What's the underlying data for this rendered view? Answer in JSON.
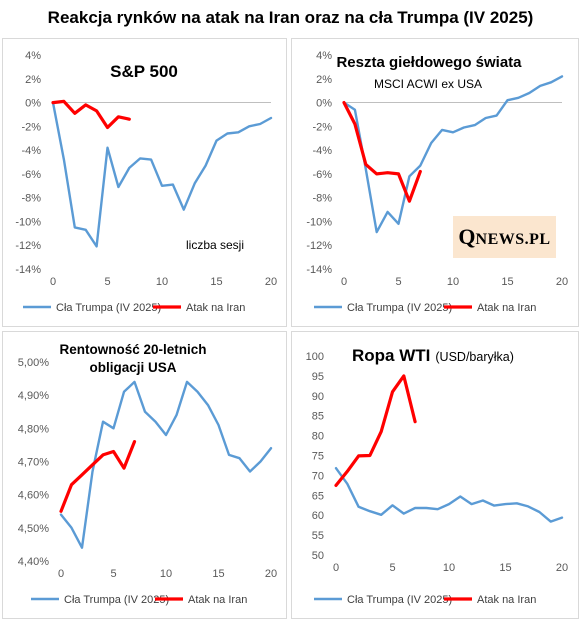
{
  "title": "Reakcja rynków na atak na Iran oraz na cła Trumpa (IV 2025)",
  "logo": {
    "big": "Q",
    "small": "NEWS.PL"
  },
  "colors": {
    "trump": "#5b9bd5",
    "iran": "#ff0000"
  },
  "chart_data": [
    {
      "type": "line",
      "title": "S&P 500",
      "subtitle": "",
      "annotation": "liczba sesji",
      "xlim": [
        0,
        20
      ],
      "xticks": [
        0,
        5,
        10,
        15,
        20
      ],
      "ylim": [
        -14,
        4
      ],
      "yticks": [
        4,
        2,
        0,
        -2,
        -4,
        -6,
        -8,
        -10,
        -12,
        -14
      ],
      "ytick_labels": [
        "4%",
        "2%",
        "0%",
        "-2%",
        "-4%",
        "-6%",
        "-8%",
        "-10%",
        "-12%",
        "-14%"
      ],
      "zero_line": true,
      "legend_position": "bottom",
      "series": [
        {
          "name": "Cła Trumpa (IV 2025)",
          "color": "#5b9bd5",
          "x": [
            0,
            1,
            2,
            3,
            4,
            5,
            6,
            7,
            8,
            9,
            10,
            11,
            12,
            13,
            14,
            15,
            16,
            17,
            18,
            19,
            20
          ],
          "y": [
            0,
            -4.8,
            -10.5,
            -10.7,
            -12.1,
            -3.8,
            -7.1,
            -5.5,
            -4.7,
            -4.8,
            -7.0,
            -6.9,
            -9.0,
            -6.8,
            -5.3,
            -3.2,
            -2.6,
            -2.5,
            -2.0,
            -1.8,
            -1.3
          ]
        },
        {
          "name": "Atak na Iran",
          "color": "#ff0000",
          "x": [
            0,
            1,
            2,
            3,
            4,
            5,
            6,
            7
          ],
          "y": [
            0,
            0.1,
            -0.9,
            -0.2,
            -0.7,
            -2.1,
            -1.2,
            -1.4
          ]
        }
      ]
    },
    {
      "type": "line",
      "title": "Reszta giełdowego świata",
      "subtitle": "MSCI ACWI ex USA",
      "annotation": "",
      "xlim": [
        0,
        20
      ],
      "xticks": [
        0,
        5,
        10,
        15,
        20
      ],
      "ylim": [
        -14,
        4
      ],
      "yticks": [
        4,
        2,
        0,
        -2,
        -4,
        -6,
        -8,
        -10,
        -12,
        -14
      ],
      "ytick_labels": [
        "4%",
        "2%",
        "0%",
        "-2%",
        "-4%",
        "-6%",
        "-8%",
        "-10%",
        "-12%",
        "-14%"
      ],
      "zero_line": true,
      "legend_position": "bottom",
      "series": [
        {
          "name": "Cła Trumpa (IV 2025)",
          "color": "#5b9bd5",
          "x": [
            0,
            1,
            2,
            3,
            4,
            5,
            6,
            7,
            8,
            9,
            10,
            11,
            12,
            13,
            14,
            15,
            16,
            17,
            18,
            19,
            20
          ],
          "y": [
            0,
            -0.6,
            -5.6,
            -10.9,
            -9.2,
            -10.2,
            -6.2,
            -5.3,
            -3.4,
            -2.3,
            -2.5,
            -2.1,
            -1.9,
            -1.3,
            -1.1,
            0.2,
            0.4,
            0.8,
            1.4,
            1.7,
            2.2
          ]
        },
        {
          "name": "Atak na Iran",
          "color": "#ff0000",
          "x": [
            0,
            1,
            2,
            3,
            4,
            5,
            6,
            7
          ],
          "y": [
            0,
            -1.8,
            -5.2,
            -6.0,
            -5.9,
            -6.0,
            -8.3,
            -5.8
          ]
        }
      ]
    },
    {
      "type": "line",
      "title": "Rentowność 20-letnich obligacji USA",
      "title_lines": [
        "Rentowność 20-letnich",
        "obligacji USA"
      ],
      "subtitle": "",
      "annotation": "",
      "xlim": [
        0,
        20
      ],
      "xticks": [
        0,
        5,
        10,
        15,
        20
      ],
      "ylim": [
        4.4,
        5.0
      ],
      "yticks": [
        5.0,
        4.9,
        4.8,
        4.7,
        4.6,
        4.5,
        4.4
      ],
      "ytick_labels": [
        "5,00%",
        "4,90%",
        "4,80%",
        "4,70%",
        "4,60%",
        "4,50%",
        "4,40%"
      ],
      "zero_line": false,
      "legend_position": "bottom",
      "series": [
        {
          "name": "Cła Trumpa (IV 2025)",
          "color": "#5b9bd5",
          "x": [
            0,
            1,
            2,
            3,
            4,
            5,
            6,
            7,
            8,
            9,
            10,
            11,
            12,
            13,
            14,
            15,
            16,
            17,
            18,
            19,
            20
          ],
          "y": [
            4.54,
            4.5,
            4.44,
            4.67,
            4.82,
            4.8,
            4.91,
            4.94,
            4.85,
            4.82,
            4.78,
            4.84,
            4.94,
            4.91,
            4.87,
            4.81,
            4.72,
            4.71,
            4.67,
            4.7,
            4.74
          ]
        },
        {
          "name": "Atak na Iran",
          "color": "#ff0000",
          "x": [
            0,
            1,
            2,
            3,
            4,
            5,
            6,
            7
          ],
          "y": [
            4.55,
            4.63,
            4.66,
            4.69,
            4.72,
            4.73,
            4.68,
            4.76
          ]
        }
      ]
    },
    {
      "type": "line",
      "title": "Ropa WTI",
      "subtitle": "(USD/baryłka)",
      "annotation": "",
      "xlim": [
        0,
        20
      ],
      "xticks": [
        0,
        5,
        10,
        15,
        20
      ],
      "ylim": [
        50,
        100
      ],
      "yticks": [
        100,
        95,
        90,
        85,
        80,
        75,
        70,
        65,
        60,
        55,
        50
      ],
      "ytick_labels": [
        "100",
        "95",
        "90",
        "85",
        "80",
        "75",
        "70",
        "65",
        "60",
        "55",
        "50"
      ],
      "zero_line": false,
      "legend_position": "bottom",
      "series": [
        {
          "name": "Cła Trumpa (IV 2025)",
          "color": "#5b9bd5",
          "x": [
            0,
            1,
            2,
            3,
            4,
            5,
            6,
            7,
            8,
            9,
            10,
            11,
            12,
            13,
            14,
            15,
            16,
            17,
            18,
            19,
            20
          ],
          "y": [
            71.8,
            67.9,
            62.1,
            61.0,
            60.1,
            62.5,
            60.4,
            61.8,
            61.8,
            61.5,
            62.8,
            64.7,
            62.8,
            63.7,
            62.4,
            62.8,
            63.0,
            62.2,
            60.8,
            58.4,
            59.4
          ]
        },
        {
          "name": "Atak na Iran",
          "color": "#ff0000",
          "x": [
            0,
            1,
            2,
            3,
            4,
            5,
            6,
            7
          ],
          "y": [
            67.5,
            71.0,
            74.9,
            75.0,
            81.0,
            91.0,
            95.0,
            83.5
          ]
        }
      ]
    }
  ]
}
